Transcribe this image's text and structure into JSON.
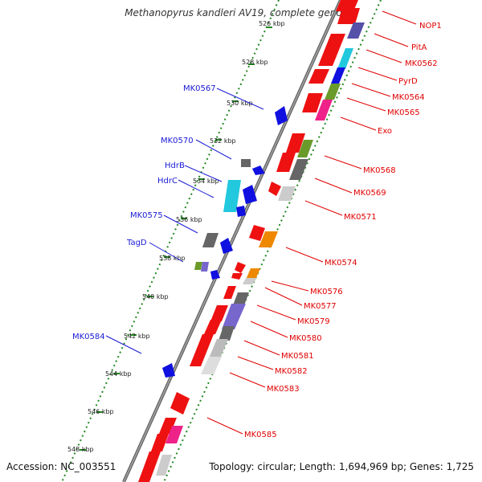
{
  "title": "Methanopyrus kandleri AV19, complete genome",
  "footer": {
    "accession": "Accession: NC_003551",
    "topology": "Topology: circular; Length: 1,694,969 bp; Genes: 1,725"
  },
  "ticks": [
    "526 kbp",
    "528 kbp",
    "530 kbp",
    "532 kbp",
    "534 kbp",
    "536 kbp",
    "538 kbp",
    "540 kbp",
    "542 kbp",
    "544 kbp",
    "546 kbp",
    "548 kbp"
  ],
  "labels_reverse": [
    "NOP1",
    "PitA",
    "MK0562",
    "PyrD",
    "MK0564",
    "MK0565",
    "Exo",
    "MK0568",
    "MK0569",
    "MK0571",
    "MK0574",
    "MK0576",
    "MK0577",
    "MK0579",
    "MK0580",
    "MK0581",
    "MK0582",
    "MK0583",
    "MK0585"
  ],
  "labels_forward": [
    "MK0567",
    "MK0570",
    "HdrB",
    "HdrC",
    "MK0575",
    "TagD",
    "MK0584"
  ],
  "colors": {
    "reverse_gene": "#ee1111",
    "forward_gene": "#1010e0",
    "label_reverse": "#e00000",
    "label_forward": "#1a1ad6",
    "backbone": "#777777",
    "dots": "#228822"
  }
}
